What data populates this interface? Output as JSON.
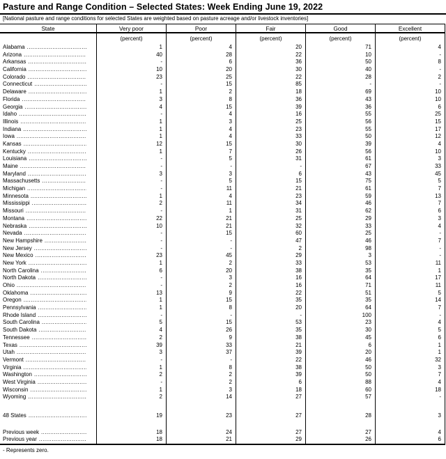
{
  "title": "Pasture and Range Condition – Selected States: Week Ending June 19, 2022",
  "note": "[National pasture and range conditions for selected States are weighted based on pasture acreage and/or livestock inventories]",
  "footnote": "- Represents zero.",
  "table": {
    "columns": [
      "State",
      "Very poor",
      "Poor",
      "Fair",
      "Good",
      "Excellent"
    ],
    "unit_label": "(percent)",
    "rows": [
      {
        "state": "Alabama",
        "very_poor": "1",
        "poor": "4",
        "fair": "20",
        "good": "71",
        "excellent": "4"
      },
      {
        "state": "Arizona",
        "very_poor": "40",
        "poor": "28",
        "fair": "22",
        "good": "10",
        "excellent": "-"
      },
      {
        "state": "Arkansas",
        "very_poor": "-",
        "poor": "6",
        "fair": "36",
        "good": "50",
        "excellent": "8"
      },
      {
        "state": "California",
        "very_poor": "10",
        "poor": "20",
        "fair": "30",
        "good": "40",
        "excellent": "-"
      },
      {
        "state": "Colorado",
        "very_poor": "23",
        "poor": "25",
        "fair": "22",
        "good": "28",
        "excellent": "2"
      },
      {
        "state": "Connecticut",
        "very_poor": "-",
        "poor": "15",
        "fair": "85",
        "good": "-",
        "excellent": "-"
      },
      {
        "state": "Delaware",
        "very_poor": "1",
        "poor": "2",
        "fair": "18",
        "good": "69",
        "excellent": "10"
      },
      {
        "state": "Florida",
        "very_poor": "3",
        "poor": "8",
        "fair": "36",
        "good": "43",
        "excellent": "10"
      },
      {
        "state": "Georgia",
        "very_poor": "4",
        "poor": "15",
        "fair": "39",
        "good": "36",
        "excellent": "6"
      },
      {
        "state": "Idaho",
        "very_poor": "-",
        "poor": "4",
        "fair": "16",
        "good": "55",
        "excellent": "25"
      },
      {
        "state": "Illinois",
        "very_poor": "1",
        "poor": "3",
        "fair": "25",
        "good": "56",
        "excellent": "15"
      },
      {
        "state": "Indiana",
        "very_poor": "1",
        "poor": "4",
        "fair": "23",
        "good": "55",
        "excellent": "17"
      },
      {
        "state": "Iowa",
        "very_poor": "1",
        "poor": "4",
        "fair": "33",
        "good": "50",
        "excellent": "12"
      },
      {
        "state": "Kansas",
        "very_poor": "12",
        "poor": "15",
        "fair": "30",
        "good": "39",
        "excellent": "4"
      },
      {
        "state": "Kentucky",
        "very_poor": "1",
        "poor": "7",
        "fair": "26",
        "good": "56",
        "excellent": "10"
      },
      {
        "state": "Louisiana",
        "very_poor": "-",
        "poor": "5",
        "fair": "31",
        "good": "61",
        "excellent": "3"
      },
      {
        "state": "Maine",
        "very_poor": "-",
        "poor": "-",
        "fair": "-",
        "good": "67",
        "excellent": "33"
      },
      {
        "state": "Maryland",
        "very_poor": "3",
        "poor": "3",
        "fair": "6",
        "good": "43",
        "excellent": "45"
      },
      {
        "state": "Massachusetts",
        "very_poor": "-",
        "poor": "5",
        "fair": "15",
        "good": "75",
        "excellent": "5"
      },
      {
        "state": "Michigan",
        "very_poor": "-",
        "poor": "11",
        "fair": "21",
        "good": "61",
        "excellent": "7"
      },
      {
        "state": "Minnesota",
        "very_poor": "1",
        "poor": "4",
        "fair": "23",
        "good": "59",
        "excellent": "13"
      },
      {
        "state": "Mississippi",
        "very_poor": "2",
        "poor": "11",
        "fair": "34",
        "good": "46",
        "excellent": "7"
      },
      {
        "state": "Missouri",
        "very_poor": "-",
        "poor": "1",
        "fair": "31",
        "good": "62",
        "excellent": "6"
      },
      {
        "state": "Montana",
        "very_poor": "22",
        "poor": "21",
        "fair": "25",
        "good": "29",
        "excellent": "3"
      },
      {
        "state": "Nebraska",
        "very_poor": "10",
        "poor": "21",
        "fair": "32",
        "good": "33",
        "excellent": "4"
      },
      {
        "state": "Nevada",
        "very_poor": "-",
        "poor": "15",
        "fair": "60",
        "good": "25",
        "excellent": "-"
      },
      {
        "state": "New Hampshire",
        "very_poor": "-",
        "poor": "-",
        "fair": "47",
        "good": "46",
        "excellent": "7"
      },
      {
        "state": "New Jersey",
        "very_poor": "-",
        "poor": "-",
        "fair": "2",
        "good": "98",
        "excellent": "-"
      },
      {
        "state": "New Mexico",
        "very_poor": "23",
        "poor": "45",
        "fair": "29",
        "good": "3",
        "excellent": "-"
      },
      {
        "state": "New York",
        "very_poor": "1",
        "poor": "2",
        "fair": "33",
        "good": "53",
        "excellent": "11"
      },
      {
        "state": "North Carolina",
        "very_poor": "6",
        "poor": "20",
        "fair": "38",
        "good": "35",
        "excellent": "1"
      },
      {
        "state": "North Dakota",
        "very_poor": "-",
        "poor": "3",
        "fair": "16",
        "good": "64",
        "excellent": "17"
      },
      {
        "state": "Ohio",
        "very_poor": "-",
        "poor": "2",
        "fair": "16",
        "good": "71",
        "excellent": "11"
      },
      {
        "state": "Oklahoma",
        "very_poor": "13",
        "poor": "9",
        "fair": "22",
        "good": "51",
        "excellent": "5"
      },
      {
        "state": "Oregon",
        "very_poor": "1",
        "poor": "15",
        "fair": "35",
        "good": "35",
        "excellent": "14"
      },
      {
        "state": "Pennsylvania",
        "very_poor": "1",
        "poor": "8",
        "fair": "20",
        "good": "64",
        "excellent": "7"
      },
      {
        "state": "Rhode Island",
        "very_poor": "-",
        "poor": "-",
        "fair": "-",
        "good": "100",
        "excellent": "-"
      },
      {
        "state": "South Carolina",
        "very_poor": "5",
        "poor": "15",
        "fair": "53",
        "good": "23",
        "excellent": "4"
      },
      {
        "state": "South Dakota",
        "very_poor": "4",
        "poor": "26",
        "fair": "35",
        "good": "30",
        "excellent": "5"
      },
      {
        "state": "Tennessee",
        "very_poor": "2",
        "poor": "9",
        "fair": "38",
        "good": "45",
        "excellent": "6"
      },
      {
        "state": "Texas",
        "very_poor": "39",
        "poor": "33",
        "fair": "21",
        "good": "6",
        "excellent": "1"
      },
      {
        "state": "Utah",
        "very_poor": "3",
        "poor": "37",
        "fair": "39",
        "good": "20",
        "excellent": "1"
      },
      {
        "state": "Vermont",
        "very_poor": "-",
        "poor": "-",
        "fair": "22",
        "good": "46",
        "excellent": "32"
      },
      {
        "state": "Virginia",
        "very_poor": "1",
        "poor": "8",
        "fair": "38",
        "good": "50",
        "excellent": "3"
      },
      {
        "state": "Washington",
        "very_poor": "2",
        "poor": "2",
        "fair": "39",
        "good": "50",
        "excellent": "7"
      },
      {
        "state": "West Virginia",
        "very_poor": "-",
        "poor": "2",
        "fair": "6",
        "good": "88",
        "excellent": "4"
      },
      {
        "state": "Wisconsin",
        "very_poor": "1",
        "poor": "3",
        "fair": "18",
        "good": "60",
        "excellent": "18"
      },
      {
        "state": "Wyoming",
        "very_poor": "2",
        "poor": "14",
        "fair": "27",
        "good": "57",
        "excellent": "-"
      }
    ],
    "total_rows": [
      {
        "state": "48 States",
        "very_poor": "19",
        "poor": "23",
        "fair": "27",
        "good": "28",
        "excellent": "3"
      }
    ],
    "comparison_rows": [
      {
        "state": "Previous week",
        "very_poor": "18",
        "poor": "24",
        "fair": "27",
        "good": "27",
        "excellent": "4"
      },
      {
        "state": "Previous year",
        "very_poor": "18",
        "poor": "21",
        "fair": "29",
        "good": "26",
        "excellent": "6"
      }
    ]
  }
}
